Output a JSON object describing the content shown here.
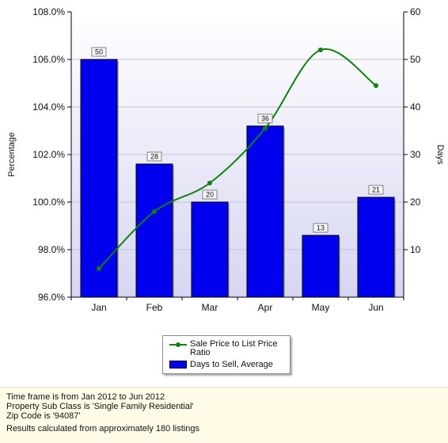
{
  "chart_data": {
    "type": "bar",
    "categories": [
      "Jan",
      "Feb",
      "Mar",
      "Apr",
      "May",
      "Jun"
    ],
    "series": [
      {
        "name": "Days to Sell, Average",
        "type": "bar",
        "axis": "right",
        "values": [
          50,
          28,
          20,
          36,
          13,
          21
        ],
        "color": "#0000ee"
      },
      {
        "name": "Sale Price to List Price Ratio",
        "type": "line",
        "axis": "left",
        "values": [
          97.2,
          99.6,
          100.8,
          103.1,
          106.4,
          104.9
        ],
        "color": "#108010"
      }
    ],
    "ylabel": "Percentage",
    "y2label": "Days",
    "ylim": [
      96,
      108
    ],
    "y2lim": [
      0,
      60
    ],
    "yticks": [
      "96.0%",
      "98.0%",
      "100.0%",
      "102.0%",
      "104.0%",
      "106.0%",
      "108.0%"
    ],
    "y2ticks": [
      "10",
      "20",
      "30",
      "40",
      "50",
      "60"
    ],
    "legend": "bottom-center"
  },
  "footer": {
    "line1": "Time frame is from Jan 2012 to Jun 2012",
    "line2": "Property Sub Class is 'Single Family Residential'",
    "line3": "Zip Code is '94087'",
    "line4": "Results calculated from approximately 180 listings"
  },
  "colors": {
    "bar": "#0000ee",
    "line": "#108010",
    "plot_background_top": "#ffffff",
    "plot_background_bottom": "#d6d6f2",
    "footer_background": "#fffbe6"
  }
}
